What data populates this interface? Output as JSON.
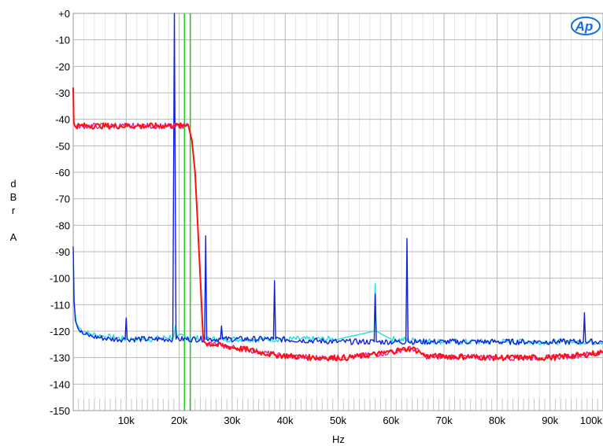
{
  "chart_data": {
    "type": "line",
    "title": "",
    "xlabel": "Hz",
    "ylabel": "dBrA",
    "ylabel_letters": [
      "d",
      "B",
      "r",
      "",
      "A"
    ],
    "xlim": [
      0,
      100000
    ],
    "ylim": [
      -150,
      0
    ],
    "x_ticks": [
      10000,
      20000,
      30000,
      40000,
      50000,
      60000,
      70000,
      80000,
      90000,
      100000
    ],
    "x_tick_labels": [
      "10k",
      "20k",
      "30k",
      "40k",
      "50k",
      "60k",
      "70k",
      "80k",
      "90k",
      "100k"
    ],
    "y_ticks": [
      0,
      -10,
      -20,
      -30,
      -40,
      -50,
      -60,
      -70,
      -80,
      -90,
      -100,
      -110,
      -120,
      -130,
      -140,
      -150
    ],
    "y_tick_labels": [
      "+0",
      "-10",
      "-20",
      "-30",
      "-40",
      "-50",
      "-60",
      "-70",
      "-80",
      "-90",
      "-100",
      "-110",
      "-120",
      "-130",
      "-140",
      "-150"
    ],
    "grid": true,
    "logo_text": "Ap",
    "markers": [
      {
        "name": "marker-21k",
        "x": 21000,
        "color": "#22cc22"
      },
      {
        "name": "marker-22k",
        "x": 22100,
        "color": "#22cc22"
      }
    ],
    "series": [
      {
        "key": "spectrum-cyan",
        "color": "#22dddd",
        "x": [
          0,
          200,
          600,
          1200,
          3000,
          6000,
          10000,
          15000,
          19000,
          19300,
          19600,
          25000,
          30000,
          40000,
          50000,
          56800,
          57000,
          57200,
          60000,
          70000,
          80000,
          90000,
          100000
        ],
        "y": [
          -90,
          -110,
          -117,
          -119,
          -121,
          -122,
          -123,
          -123,
          -122,
          -118,
          -122,
          -123,
          -123,
          -123,
          -123,
          -120,
          -102,
          -120,
          -123,
          -124,
          -124,
          -124,
          -124
        ]
      },
      {
        "key": "spectrum-blue",
        "color": "#1020e0",
        "x": [
          0,
          150,
          400,
          900,
          1800,
          3500,
          7000,
          9800,
          10000,
          10200,
          15000,
          18800,
          19100,
          19400,
          24800,
          25000,
          25200,
          27800,
          28000,
          28200,
          37800,
          38000,
          38200,
          50000,
          56800,
          57000,
          57200,
          62800,
          63000,
          63200,
          70000,
          80000,
          90000,
          96300,
          96500,
          96700,
          100000
        ],
        "y": [
          -88,
          -108,
          -116,
          -119,
          -121,
          -122,
          -123,
          -123,
          -115,
          -123,
          -123,
          -123,
          0,
          -123,
          -123,
          -84,
          -123,
          -123,
          -118,
          -123,
          -123,
          -101,
          -123,
          -124,
          -124,
          -106,
          -124,
          -124,
          -85,
          -124,
          -124,
          -124,
          -124,
          -124,
          -113,
          -124,
          -124
        ]
      },
      {
        "key": "spectrum-magenta",
        "color": "#dd22aa",
        "x": [
          0,
          100,
          300,
          5000,
          12000,
          20500,
          21700,
          22400,
          23000,
          23500,
          24000,
          24500,
          25000,
          28000,
          33000,
          38000,
          45000,
          52000,
          58000,
          62000,
          64000,
          65500,
          66500,
          70000,
          80000,
          90000,
          96000,
          100000
        ],
        "y": [
          -28,
          -41,
          -42.5,
          -42.5,
          -42.5,
          -42.5,
          -42,
          -48,
          -60,
          -80,
          -100,
          -122,
          -124.5,
          -125.5,
          -127,
          -129,
          -130,
          -130,
          -128.5,
          -127,
          -126.5,
          -128,
          -129.5,
          -129.5,
          -130,
          -130,
          -129,
          -128
        ]
      },
      {
        "key": "spectrum-red",
        "color": "#ff1010",
        "x": [
          0,
          100,
          300,
          5000,
          12000,
          20500,
          21700,
          22400,
          23000,
          23500,
          24000,
          24500,
          25000,
          28000,
          33000,
          38000,
          45000,
          52000,
          58000,
          62000,
          64000,
          65500,
          66500,
          70000,
          80000,
          90000,
          96000,
          100000
        ],
        "y": [
          -28,
          -41,
          -42.5,
          -42.5,
          -42.5,
          -42.5,
          -42,
          -48,
          -60,
          -80,
          -100,
          -122,
          -124.5,
          -125.5,
          -127,
          -129,
          -130,
          -130,
          -128.5,
          -127,
          -126.5,
          -128,
          -129.5,
          -129.5,
          -130,
          -130,
          -129,
          -128
        ]
      }
    ]
  }
}
